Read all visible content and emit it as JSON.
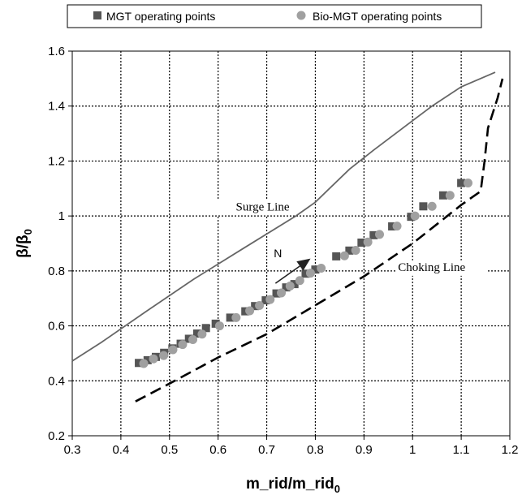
{
  "chart_data": {
    "type": "scatter",
    "xlabel": "m_rid/m_rid",
    "xlabel_subscript": "0",
    "ylabel": "β/β",
    "ylabel_subscript": "0",
    "xlim": [
      0.3,
      1.2
    ],
    "ylim": [
      0.2,
      1.6
    ],
    "x_ticks": [
      "0.3",
      "0.4",
      "0.5",
      "0.6",
      "0.7",
      "0.8",
      "0.9",
      "1",
      "1.1",
      "1.2"
    ],
    "y_ticks": [
      "0.2",
      "0.4",
      "0.6",
      "0.8",
      "1",
      "1.2",
      "1.4",
      "1.6"
    ],
    "grid": true,
    "legend_position": "top",
    "series": [
      {
        "name": "MGT operating points",
        "marker": "square",
        "color": "#555555",
        "points": [
          [
            0.437,
            0.465
          ],
          [
            0.455,
            0.475
          ],
          [
            0.472,
            0.487
          ],
          [
            0.489,
            0.502
          ],
          [
            0.506,
            0.518
          ],
          [
            0.523,
            0.535
          ],
          [
            0.54,
            0.553
          ],
          [
            0.557,
            0.572
          ],
          [
            0.575,
            0.592
          ],
          [
            0.595,
            0.608
          ],
          [
            0.625,
            0.63
          ],
          [
            0.656,
            0.653
          ],
          [
            0.676,
            0.672
          ],
          [
            0.698,
            0.693
          ],
          [
            0.72,
            0.718
          ],
          [
            0.74,
            0.74
          ],
          [
            0.757,
            0.752
          ],
          [
            0.78,
            0.79
          ],
          [
            0.8,
            0.805
          ],
          [
            0.843,
            0.853
          ],
          [
            0.87,
            0.874
          ],
          [
            0.895,
            0.903
          ],
          [
            0.92,
            0.93
          ],
          [
            0.958,
            0.962
          ],
          [
            0.997,
            0.997
          ],
          [
            1.022,
            1.035
          ],
          [
            1.063,
            1.075
          ],
          [
            1.1,
            1.12
          ]
        ]
      },
      {
        "name": "Bio-MGT operating points",
        "marker": "circle",
        "color": "#a0a0a0",
        "points": [
          [
            0.447,
            0.463
          ],
          [
            0.467,
            0.48
          ],
          [
            0.488,
            0.492
          ],
          [
            0.507,
            0.513
          ],
          [
            0.527,
            0.532
          ],
          [
            0.548,
            0.55
          ],
          [
            0.567,
            0.57
          ],
          [
            0.603,
            0.6
          ],
          [
            0.637,
            0.63
          ],
          [
            0.665,
            0.655
          ],
          [
            0.685,
            0.674
          ],
          [
            0.707,
            0.696
          ],
          [
            0.73,
            0.72
          ],
          [
            0.748,
            0.745
          ],
          [
            0.768,
            0.765
          ],
          [
            0.79,
            0.792
          ],
          [
            0.812,
            0.81
          ],
          [
            0.86,
            0.855
          ],
          [
            0.883,
            0.875
          ],
          [
            0.908,
            0.905
          ],
          [
            0.932,
            0.933
          ],
          [
            0.968,
            0.963
          ],
          [
            1.005,
            1.0
          ],
          [
            1.04,
            1.035
          ],
          [
            1.077,
            1.075
          ],
          [
            1.114,
            1.12
          ]
        ]
      }
    ],
    "lines": [
      {
        "label": "Surge Line",
        "style": "solid",
        "color": "#666666",
        "points": [
          [
            0.3,
            0.472
          ],
          [
            0.36,
            0.54
          ],
          [
            0.45,
            0.65
          ],
          [
            0.55,
            0.77
          ],
          [
            0.65,
            0.88
          ],
          [
            0.76,
            1.0
          ],
          [
            0.8,
            1.05
          ],
          [
            0.87,
            1.17
          ],
          [
            0.92,
            1.24
          ],
          [
            0.98,
            1.32
          ],
          [
            1.04,
            1.4
          ],
          [
            1.1,
            1.47
          ],
          [
            1.17,
            1.523
          ]
        ]
      },
      {
        "label": "Choking Line",
        "style": "dashed",
        "color": "#000000",
        "points": [
          [
            0.43,
            0.325
          ],
          [
            0.5,
            0.39
          ],
          [
            0.6,
            0.485
          ],
          [
            0.7,
            0.57
          ],
          [
            0.8,
            0.675
          ],
          [
            0.9,
            0.78
          ],
          [
            1.0,
            0.9
          ],
          [
            1.05,
            0.97
          ],
          [
            1.1,
            1.04
          ],
          [
            1.14,
            1.09
          ],
          [
            1.148,
            1.2
          ],
          [
            1.155,
            1.32
          ],
          [
            1.175,
            1.43
          ],
          [
            1.185,
            1.5
          ]
        ]
      }
    ],
    "annotations": [
      {
        "text": "Surge Line",
        "x": 0.76,
        "y": 1.02
      },
      {
        "text": "Choking Line",
        "x": 0.97,
        "y": 0.8
      },
      {
        "text": "N",
        "x": 0.723,
        "y": 0.85
      }
    ],
    "arrow": {
      "from": [
        0.718,
        0.755
      ],
      "to": [
        0.79,
        0.845
      ],
      "color": "#222222"
    }
  }
}
